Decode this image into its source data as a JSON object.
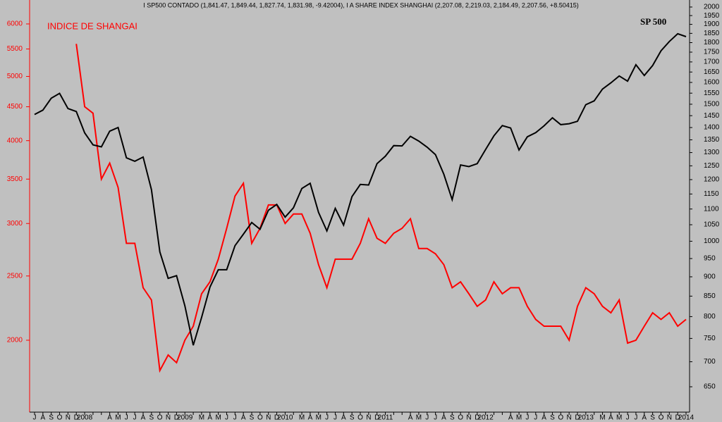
{
  "chart_data": {
    "type": "line",
    "title": "I SP500 CONTADO (1,841.47, 1,849.44, 1,827.74, 1,831.98, -9.42004), I A SHARE INDEX SHANGHAI (2,207.08, 2,219.03, 2,184.49, 2,207.56, +8.50415)",
    "annotations": [
      "INDICE DE SHANGAI",
      "SP 500"
    ],
    "log_scale": true,
    "categories": [
      "J",
      "A",
      "S",
      "O",
      "N",
      "D",
      "2008",
      null,
      null,
      "A",
      "M",
      "J",
      "J",
      "A",
      "S",
      "O",
      "N",
      "D",
      "2009",
      null,
      "M",
      "A",
      "M",
      "J",
      "J",
      "A",
      "S",
      "O",
      "N",
      "D",
      "2010",
      null,
      "M",
      "A",
      "M",
      "J",
      "J",
      "A",
      "S",
      "O",
      "N",
      "D",
      "2011",
      null,
      null,
      "A",
      "M",
      "J",
      "J",
      "A",
      "S",
      "O",
      "N",
      "D",
      "2012",
      null,
      null,
      "A",
      "M",
      "J",
      "J",
      "A",
      "S",
      "O",
      "N",
      "D",
      "2013",
      null,
      "M",
      "A",
      "M",
      "J",
      "J",
      "A",
      "S",
      "O",
      "N",
      "D",
      "2014"
    ],
    "series": [
      {
        "name": "INDICE DE SHANGAI",
        "color": "#ff0000",
        "axis": "y",
        "values": [
          null,
          null,
          null,
          null,
          null,
          5600,
          4500,
          4400,
          3500,
          3700,
          3400,
          2800,
          2800,
          2400,
          2300,
          1800,
          1900,
          1850,
          2000,
          2100,
          2350,
          2450,
          2650,
          2950,
          3300,
          3450,
          2800,
          2950,
          3200,
          3200,
          3000,
          3100,
          3100,
          2900,
          2600,
          2400,
          2650,
          2650,
          2650,
          2800,
          3050,
          2850,
          2800,
          2900,
          2950,
          3050,
          2750,
          2750,
          2700,
          2600,
          2400,
          2450,
          2350,
          2250,
          2300,
          2450,
          2350,
          2400,
          2400,
          2250,
          2150,
          2100,
          2100,
          2100,
          2000,
          2250,
          2400,
          2350,
          2250,
          2200,
          2300,
          1980,
          2000,
          2100,
          2200,
          2150,
          2200,
          2100,
          2150
        ]
      },
      {
        "name": "SP 500",
        "color": "#000000",
        "axis": "y2",
        "values": [
          1455,
          1474,
          1527,
          1549,
          1481,
          1468,
          1378,
          1330,
          1322,
          1385,
          1400,
          1280,
          1267,
          1283,
          1165,
          969,
          896,
          903,
          826,
          735,
          798,
          873,
          919,
          919,
          987,
          1021,
          1057,
          1036,
          1096,
          1115,
          1074,
          1104,
          1169,
          1187,
          1089,
          1031,
          1102,
          1049,
          1141,
          1183,
          1181,
          1258,
          1286,
          1327,
          1326,
          1364,
          1345,
          1321,
          1292,
          1219,
          1131,
          1253,
          1247,
          1258,
          1312,
          1366,
          1408,
          1398,
          1310,
          1362,
          1379,
          1407,
          1441,
          1412,
          1416,
          1426,
          1498,
          1515,
          1569,
          1598,
          1631,
          1606,
          1686,
          1633,
          1682,
          1757,
          1806,
          1848,
          1832
        ]
      }
    ],
    "ylim": [
      1558,
      6520
    ],
    "yticks": [
      2000,
      2500,
      3000,
      3500,
      4000,
      4500,
      5000,
      5500,
      6000
    ],
    "y2lim": [
      603,
      2042
    ],
    "y2ticks": [
      650,
      700,
      750,
      800,
      850,
      900,
      950,
      1000,
      1050,
      1100,
      1150,
      1200,
      1250,
      1300,
      1350,
      1400,
      1450,
      1500,
      1550,
      1600,
      1650,
      1700,
      1750,
      1800,
      1850,
      1900,
      1950,
      2000
    ]
  }
}
